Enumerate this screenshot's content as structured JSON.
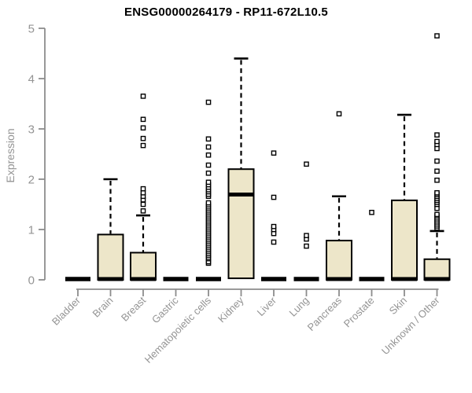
{
  "chart_data": {
    "type": "boxplot",
    "title": "ENSG00000264179 - RP11-672L10.5",
    "ylabel": "Expression",
    "xlabel": "",
    "ylim": [
      0,
      5
    ],
    "yticks": [
      0,
      1,
      2,
      3,
      4,
      5
    ],
    "grid": false,
    "legend": "none",
    "categories": [
      "Bladder",
      "Brain",
      "Breast",
      "Gastric",
      "Hematopoietic cells",
      "Kidney",
      "Liver",
      "Lung",
      "Pancreas",
      "Prostate",
      "Skin",
      "Unknown / Other"
    ],
    "boxes": [
      {
        "category": "Bladder",
        "low": 0,
        "q1": 0,
        "median": 0,
        "q3": 0,
        "high": 0,
        "outliers": []
      },
      {
        "category": "Brain",
        "low": 0,
        "q1": 0,
        "median": 0,
        "q3": 0.9,
        "high": 2.0,
        "outliers": []
      },
      {
        "category": "Breast",
        "low": 0,
        "q1": 0,
        "median": 0,
        "q3": 0.54,
        "high": 1.28,
        "outliers": [
          1.37,
          1.5,
          1.59,
          1.66,
          1.73,
          1.81,
          2.67,
          2.81,
          3.02,
          3.19,
          3.65
        ]
      },
      {
        "category": "Gastric",
        "low": 0,
        "q1": 0,
        "median": 0,
        "q3": 0,
        "high": 0,
        "outliers": []
      },
      {
        "category": "Hematopoietic cells",
        "low": 0,
        "q1": 0,
        "median": 0,
        "q3": 0,
        "high": 0,
        "outliers": [
          0.33,
          0.36,
          0.42,
          0.45,
          0.49,
          0.53,
          0.57,
          0.61,
          0.65,
          0.69,
          0.73,
          0.77,
          0.81,
          0.85,
          0.89,
          0.93,
          0.97,
          1.01,
          1.05,
          1.09,
          1.13,
          1.17,
          1.21,
          1.25,
          1.29,
          1.33,
          1.37,
          1.41,
          1.45,
          1.49,
          1.53,
          1.66,
          1.7,
          1.75,
          1.79,
          1.84,
          1.89,
          1.94,
          2.12,
          2.28,
          2.48,
          2.64,
          2.8,
          3.53
        ]
      },
      {
        "category": "Kidney",
        "low": 0,
        "q1": 0.03,
        "median": 1.68,
        "q3": 2.2,
        "high": 4.4,
        "outliers": []
      },
      {
        "category": "Liver",
        "low": 0,
        "q1": 0,
        "median": 0,
        "q3": 0,
        "high": 0,
        "outliers": [
          0.75,
          0.92,
          1.0,
          1.06,
          1.64,
          2.52
        ]
      },
      {
        "category": "Lung",
        "low": 0,
        "q1": 0,
        "median": 0,
        "q3": 0,
        "high": 0,
        "outliers": [
          0.67,
          0.81,
          0.88,
          2.3
        ]
      },
      {
        "category": "Pancreas",
        "low": 0,
        "q1": 0,
        "median": 0,
        "q3": 0.78,
        "high": 1.66,
        "outliers": [
          3.3
        ]
      },
      {
        "category": "Prostate",
        "low": 0,
        "q1": 0,
        "median": 0,
        "q3": 0,
        "high": 0,
        "outliers": [
          1.34
        ]
      },
      {
        "category": "Skin",
        "low": 0,
        "q1": 0,
        "median": 0,
        "q3": 1.58,
        "high": 3.28,
        "outliers": []
      },
      {
        "category": "Unknown / Other",
        "low": 0,
        "q1": 0,
        "median": 0,
        "q3": 0.41,
        "high": 0.97,
        "outliers": [
          1.03,
          1.07,
          1.11,
          1.15,
          1.19,
          1.23,
          1.27,
          1.3,
          1.42,
          1.5,
          1.54,
          1.58,
          1.62,
          1.66,
          1.7,
          1.73,
          1.98,
          2.16,
          2.36,
          2.61,
          2.69,
          2.75,
          2.88,
          4.85
        ]
      }
    ],
    "colors": {
      "box_fill": "#ede6c9",
      "box_stroke": "#000000",
      "axis": "#8c8c8c",
      "tick_text": "#949494",
      "title_text": "#000000",
      "outlier_fill": "#ffffff"
    }
  }
}
